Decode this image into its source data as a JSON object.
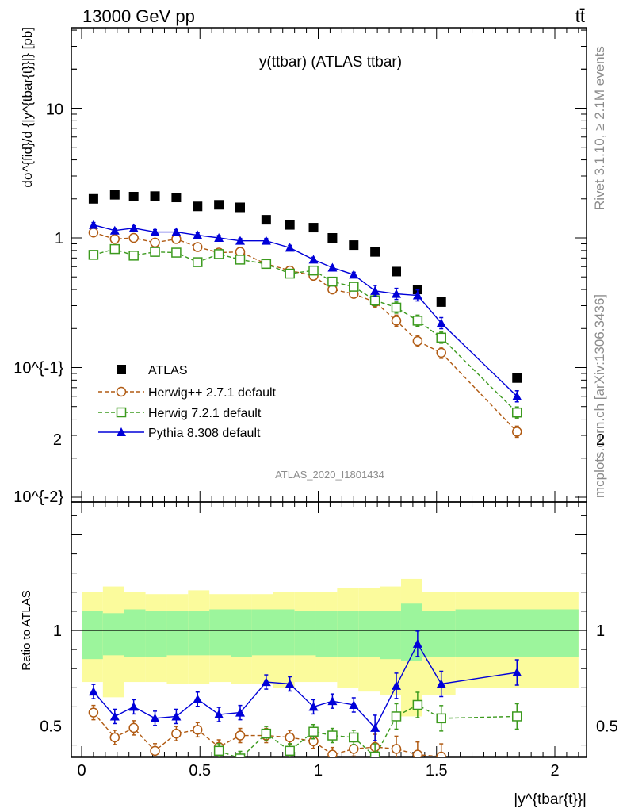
{
  "header": {
    "energy": "13000 GeV pp",
    "process": "tt̄"
  },
  "side": {
    "rivet": "Rivet 3.1.10, ≥ 2.1M events",
    "mcplots": "mcplots.cern.ch [arXiv:1306.3436]"
  },
  "main_plot": {
    "title": "y(ttbar) (ATLAS ttbar)",
    "ylabel": "dσ^{fid}/d {|y^{tbar{t}}|} [pb]",
    "analysis_id": "ATLAS_2020_I1801434"
  },
  "ratio_plot": {
    "ylabel": "Ratio to ATLAS"
  },
  "xaxis": {
    "label": "|y^{tbar{t}}|"
  },
  "colors": {
    "atlas": "#000000",
    "herwigpp": "#b05a12",
    "herwig7": "#3c9a1e",
    "pythia": "#0000d8",
    "band_inner": "#9cf59c",
    "band_outer": "#fbfb9c"
  },
  "chart_data": [
    {
      "type": "scatter",
      "title": "y(ttbar) (ATLAS ttbar)",
      "xlabel": "|y^{tbar{t}}|",
      "ylabel": "dσ^{fid}/d {|y^{tbar{t}}|} [pb]",
      "yscale": "log",
      "xlim": [
        -0.05,
        2.15
      ],
      "ylim": [
        0.01,
        50
      ],
      "yticks": [
        "10^{-2}",
        "10^{-1}",
        "1",
        "10"
      ],
      "legend_position": "lower-left",
      "x": [
        0.05,
        0.14,
        0.22,
        0.31,
        0.4,
        0.49,
        0.58,
        0.67,
        0.78,
        0.88,
        0.98,
        1.06,
        1.15,
        1.24,
        1.33,
        1.42,
        1.52,
        1.84
      ],
      "series": [
        {
          "name": "ATLAS",
          "marker": "square",
          "values": [
            2.0,
            2.15,
            2.08,
            2.1,
            2.05,
            1.75,
            1.8,
            1.72,
            1.38,
            1.26,
            1.2,
            1.0,
            0.88,
            0.78,
            0.55,
            0.4,
            0.32,
            0.083
          ]
        },
        {
          "name": "Herwig++ 2.7.1 default",
          "marker": "open-circle",
          "line": "dashed",
          "values": [
            1.1,
            0.98,
            1.0,
            0.92,
            0.98,
            0.85,
            0.77,
            0.78,
            0.63,
            0.56,
            0.51,
            0.4,
            0.37,
            0.32,
            0.23,
            0.16,
            0.13,
            0.032
          ]
        },
        {
          "name": "Herwig 7.2.1 default",
          "marker": "open-square",
          "line": "dashed",
          "values": [
            0.74,
            0.82,
            0.73,
            0.78,
            0.77,
            0.65,
            0.75,
            0.68,
            0.63,
            0.53,
            0.56,
            0.46,
            0.42,
            0.33,
            0.29,
            0.23,
            0.17,
            0.045
          ]
        },
        {
          "name": "Pythia 8.308 default",
          "marker": "filled-triangle",
          "line": "solid",
          "values": [
            1.26,
            1.14,
            1.19,
            1.11,
            1.11,
            1.05,
            1.0,
            0.95,
            0.95,
            0.84,
            0.68,
            0.59,
            0.52,
            0.39,
            0.37,
            0.36,
            0.22,
            0.06
          ]
        }
      ]
    },
    {
      "type": "line",
      "ylabel": "Ratio to ATLAS",
      "xlabel": "|y^{tbar{t}}|",
      "xlim": [
        -0.05,
        2.15
      ],
      "ylim": [
        0.35,
        2.3
      ],
      "xticks": [
        0,
        0.5,
        1,
        1.5,
        2
      ],
      "yticks": [
        0.5,
        1,
        2
      ],
      "reference_line": 1,
      "x": [
        0.05,
        0.14,
        0.22,
        0.31,
        0.4,
        0.49,
        0.58,
        0.67,
        0.78,
        0.88,
        0.98,
        1.06,
        1.15,
        1.24,
        1.33,
        1.42,
        1.52,
        1.84
      ],
      "bins": [
        [
          0,
          0.09
        ],
        [
          0.09,
          0.18
        ],
        [
          0.18,
          0.27
        ],
        [
          0.27,
          0.36
        ],
        [
          0.36,
          0.45
        ],
        [
          0.45,
          0.54
        ],
        [
          0.54,
          0.63
        ],
        [
          0.63,
          0.72
        ],
        [
          0.72,
          0.81
        ],
        [
          0.81,
          0.9
        ],
        [
          0.9,
          0.99
        ],
        [
          0.99,
          1.08
        ],
        [
          1.08,
          1.17
        ],
        [
          1.17,
          1.26
        ],
        [
          1.26,
          1.35
        ],
        [
          1.35,
          1.44
        ],
        [
          1.44,
          1.58
        ],
        [
          1.58,
          2.1
        ]
      ],
      "band_inner": [
        [
          0.85,
          1.1
        ],
        [
          0.87,
          1.09
        ],
        [
          0.86,
          1.11
        ],
        [
          0.86,
          1.1
        ],
        [
          0.87,
          1.1
        ],
        [
          0.87,
          1.1
        ],
        [
          0.87,
          1.11
        ],
        [
          0.86,
          1.11
        ],
        [
          0.87,
          1.11
        ],
        [
          0.87,
          1.11
        ],
        [
          0.87,
          1.1
        ],
        [
          0.86,
          1.1
        ],
        [
          0.86,
          1.1
        ],
        [
          0.86,
          1.1
        ],
        [
          0.85,
          1.1
        ],
        [
          0.84,
          1.14
        ],
        [
          0.86,
          1.1
        ],
        [
          0.86,
          1.11
        ]
      ],
      "band_outer": [
        [
          0.73,
          1.2
        ],
        [
          0.65,
          1.23
        ],
        [
          0.73,
          1.2
        ],
        [
          0.73,
          1.19
        ],
        [
          0.72,
          1.19
        ],
        [
          0.72,
          1.21
        ],
        [
          0.73,
          1.19
        ],
        [
          0.72,
          1.19
        ],
        [
          0.72,
          1.19
        ],
        [
          0.7,
          1.2
        ],
        [
          0.73,
          1.2
        ],
        [
          0.73,
          1.2
        ],
        [
          0.7,
          1.22
        ],
        [
          0.68,
          1.22
        ],
        [
          0.66,
          1.23
        ],
        [
          0.55,
          1.27
        ],
        [
          0.66,
          1.2
        ],
        [
          0.7,
          1.2
        ]
      ],
      "series": [
        {
          "name": "Herwig++ 2.7.1 default",
          "values": [
            0.57,
            0.44,
            0.49,
            0.37,
            0.46,
            0.48,
            0.39,
            0.45,
            0.45,
            0.44,
            0.42,
            0.35,
            0.38,
            0.39,
            0.38,
            0.35,
            0.34,
            null
          ]
        },
        {
          "name": "Herwig 7.2.1 default",
          "values": [
            null,
            null,
            null,
            null,
            null,
            null,
            0.37,
            0.33,
            0.46,
            0.37,
            0.47,
            0.45,
            0.44,
            0.34,
            0.55,
            0.61,
            0.54,
            0.55
          ]
        },
        {
          "name": "Pythia 8.308 default",
          "values": [
            0.68,
            0.55,
            0.6,
            0.54,
            0.55,
            0.64,
            0.56,
            0.57,
            0.73,
            0.72,
            0.6,
            0.63,
            0.61,
            0.49,
            0.71,
            0.93,
            0.72,
            0.78
          ]
        }
      ]
    }
  ]
}
